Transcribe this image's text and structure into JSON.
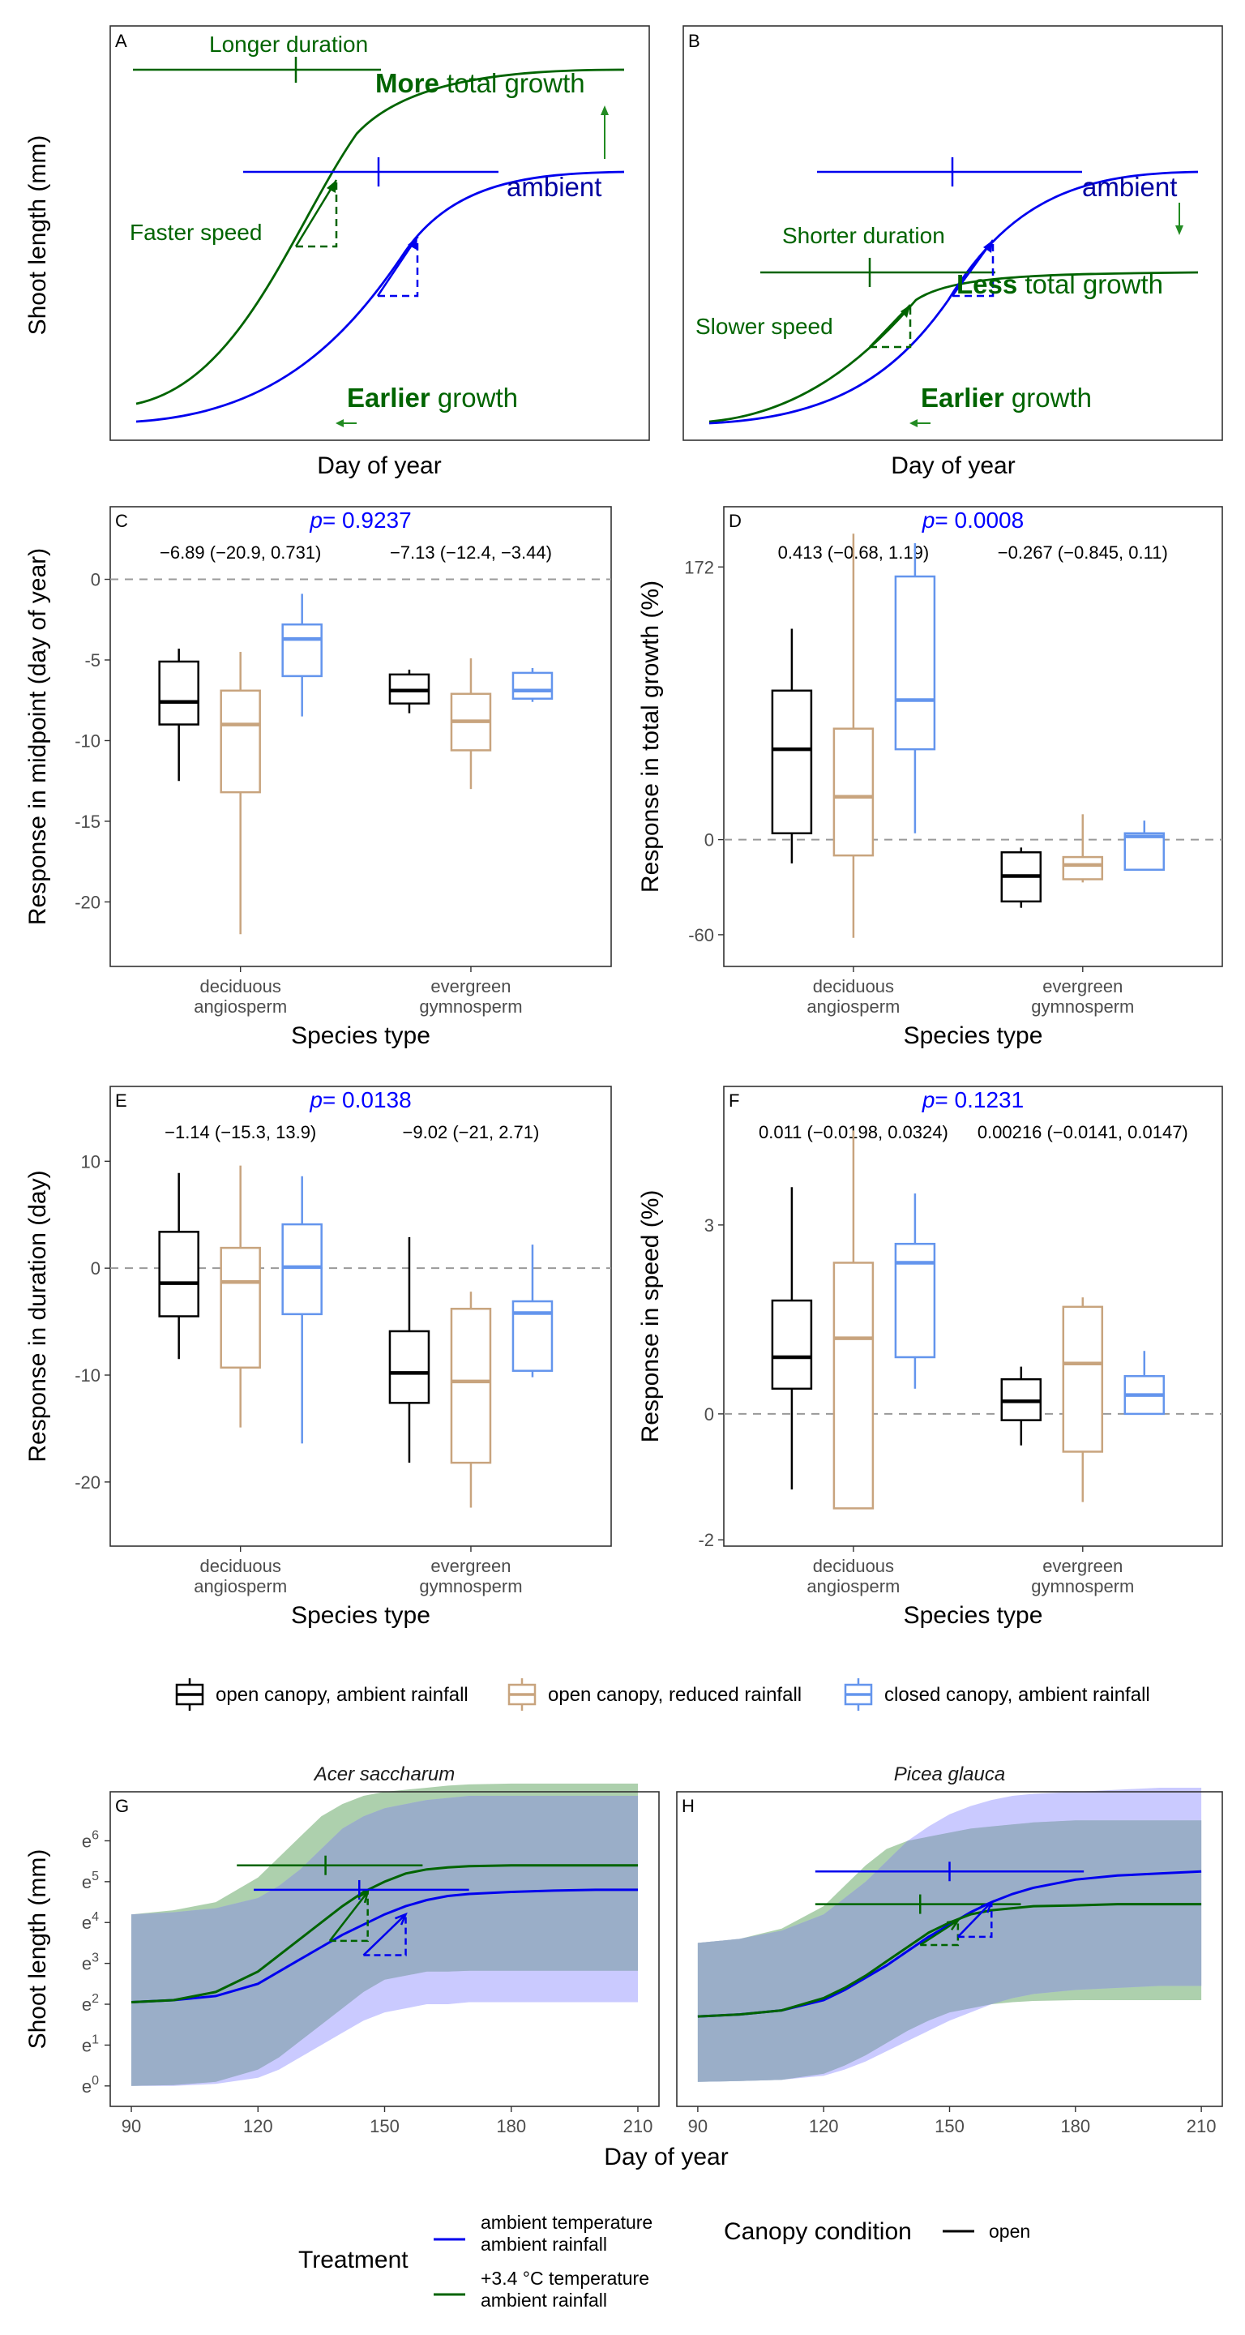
{
  "colors": {
    "green": "#006400",
    "blue": "#0000ee",
    "open_ambient": "#000000",
    "open_reduced": "#c8a47e",
    "closed_ambient": "#6495ed",
    "pval": "#0000ff",
    "band_green": "#9fc89f",
    "band_blue": "#b8b8ff",
    "band_overlap": "#9aaec8"
  },
  "panel_a": {
    "letter": "A",
    "ylabel": "Shoot length (mm)",
    "xlabel": "Day of year",
    "labels": {
      "longer_duration": "Longer duration",
      "more": "More",
      "total_growth": " total growth",
      "ambient": "ambient",
      "faster_speed": "Faster speed",
      "earlier": "Earlier",
      "growth": " growth"
    }
  },
  "panel_b": {
    "letter": "B",
    "xlabel": "Day of year",
    "labels": {
      "ambient": "ambient",
      "shorter_duration": "Shorter duration",
      "less": "Less",
      "total_growth": " total growth",
      "slower_speed": "Slower speed",
      "earlier": "Earlier",
      "growth": " growth"
    }
  },
  "legend": {
    "items": [
      {
        "label": "open canopy, ambient rainfall",
        "color": "#000000"
      },
      {
        "label": "open canopy, reduced rainfall",
        "color": "#c8a47e"
      },
      {
        "label": "closed canopy, ambient rainfall",
        "color": "#6495ed"
      }
    ]
  },
  "chart_data": [
    {
      "type": "box",
      "panel": "C",
      "ylabel": "Response in midpoint (day of year)",
      "xlabel": "Species type",
      "ylim": [
        -24,
        4.5
      ],
      "yticks": [
        0,
        -5,
        -10,
        -15,
        -20
      ],
      "ytick_labels": [
        "0",
        "-5",
        "-10",
        "-15",
        "-20"
      ],
      "zero_line": 0,
      "p_label": "p",
      "p_value": "= 0.9237",
      "categories": [
        "deciduous\nangiosperm",
        "evergreen\ngymnosperm"
      ],
      "category_lines": [
        [
          "deciduous",
          "angiosperm"
        ],
        [
          "evergreen",
          "gymnosperm"
        ]
      ],
      "annotations": [
        "−6.89 (−20.9, 0.731)",
        "−7.13 (−12.4, −3.44)"
      ],
      "series": [
        {
          "name": "open canopy, ambient rainfall",
          "boxes": [
            [
              -12.5,
              -9.0,
              -7.6,
              -5.1,
              -4.3
            ],
            [
              -8.3,
              -7.7,
              -6.9,
              -5.9,
              -5.6
            ]
          ]
        },
        {
          "name": "open canopy, reduced rainfall",
          "boxes": [
            [
              -22.0,
              -13.2,
              -9.0,
              -6.9,
              -4.5
            ],
            [
              -13.0,
              -10.6,
              -8.8,
              -7.1,
              -4.9
            ]
          ]
        },
        {
          "name": "closed canopy, ambient rainfall",
          "boxes": [
            [
              -8.5,
              -6.0,
              -3.7,
              -2.8,
              -0.9
            ],
            [
              -7.6,
              -7.4,
              -6.9,
              -5.8,
              -5.5
            ]
          ]
        }
      ]
    },
    {
      "type": "box",
      "panel": "D",
      "ylabel": "Response in total growth (%)",
      "xlabel": "Species type",
      "ylim": [
        -80,
        210
      ],
      "yticks": [
        172,
        0,
        -60
      ],
      "ytick_labels": [
        "172",
        "0",
        "-60"
      ],
      "zero_line": 0,
      "p_label": "p",
      "p_value": "= 0.0008",
      "categories": [
        "deciduous\nangiosperm",
        "evergreen\ngymnosperm"
      ],
      "category_lines": [
        [
          "deciduous",
          "angiosperm"
        ],
        [
          "evergreen",
          "gymnosperm"
        ]
      ],
      "annotations": [
        "0.413 (−0.68, 1.19)",
        "−0.267 (−0.845, 0.11)"
      ],
      "series": [
        {
          "name": "open canopy, ambient rainfall",
          "boxes": [
            [
              -15,
              4,
              57,
              94,
              133
            ],
            [
              -43,
              -39,
              -23,
              -8,
              -5
            ]
          ]
        },
        {
          "name": "open canopy, reduced rainfall",
          "boxes": [
            [
              -62,
              -10,
              27,
              70,
              193
            ],
            [
              -27,
              -25,
              -16,
              -11,
              16
            ]
          ]
        },
        {
          "name": "closed canopy, ambient rainfall",
          "boxes": [
            [
              4,
              57,
              88,
              166,
              187
            ],
            [
              -17,
              -19,
              2,
              4,
              12
            ]
          ]
        }
      ]
    },
    {
      "type": "box",
      "panel": "E",
      "ylabel": "Response in duration (day)",
      "xlabel": "Species type",
      "ylim": [
        -26,
        17
      ],
      "yticks": [
        10,
        0,
        -10,
        -20
      ],
      "ytick_labels": [
        "10",
        "0",
        "-10",
        "-20"
      ],
      "zero_line": 0,
      "p_label": "p",
      "p_value": "= 0.0138",
      "categories": [
        "deciduous\nangiosperm",
        "evergreen\ngymnosperm"
      ],
      "category_lines": [
        [
          "deciduous",
          "angiosperm"
        ],
        [
          "evergreen",
          "gymnosperm"
        ]
      ],
      "annotations": [
        "−1.14 (−15.3, 13.9)",
        "−9.02 (−21, 2.71)"
      ],
      "series": [
        {
          "name": "open canopy, ambient rainfall",
          "boxes": [
            [
              -8.5,
              -4.5,
              -1.4,
              3.4,
              8.9
            ],
            [
              -18.2,
              -12.6,
              -9.8,
              -5.9,
              2.9
            ]
          ]
        },
        {
          "name": "open canopy, reduced rainfall",
          "boxes": [
            [
              -14.9,
              -9.3,
              -1.3,
              1.9,
              9.6
            ],
            [
              -22.4,
              -18.2,
              -10.6,
              -3.8,
              -2.2
            ]
          ]
        },
        {
          "name": "closed canopy, ambient rainfall",
          "boxes": [
            [
              -16.4,
              -4.3,
              0.1,
              4.1,
              8.6
            ],
            [
              -10.2,
              -9.6,
              -4.2,
              -3.1,
              2.2
            ]
          ]
        }
      ]
    },
    {
      "type": "box",
      "panel": "F",
      "ylabel": "Response in speed (%)",
      "xlabel": "Species type",
      "ylim": [
        -2.1,
        5.2
      ],
      "yticks": [
        3,
        0,
        -2
      ],
      "ytick_labels": [
        "3",
        "0",
        "-2"
      ],
      "zero_line": 0,
      "p_label": "p",
      "p_value": "= 0.1231",
      "categories": [
        "deciduous\nangiosperm",
        "evergreen\ngymnosperm"
      ],
      "category_lines": [
        [
          "deciduous",
          "angiosperm"
        ],
        [
          "evergreen",
          "gymnosperm"
        ]
      ],
      "annotations": [
        "0.011 (−0.0198, 0.0324)",
        "0.00216 (−0.0141, 0.0147)"
      ],
      "series": [
        {
          "name": "open canopy, ambient rainfall",
          "boxes": [
            [
              -1.2,
              0.4,
              0.9,
              1.8,
              3.6
            ],
            [
              -0.5,
              -0.1,
              0.2,
              0.55,
              0.75
            ]
          ]
        },
        {
          "name": "open canopy, reduced rainfall",
          "boxes": [
            [
              -1.5,
              -1.5,
              1.2,
              2.4,
              4.5
            ],
            [
              -1.4,
              -0.6,
              0.8,
              1.7,
              1.85
            ]
          ]
        },
        {
          "name": "closed canopy, ambient rainfall",
          "boxes": [
            [
              0.4,
              0.9,
              2.4,
              2.7,
              3.5
            ],
            [
              0.0,
              0.0,
              0.3,
              0.6,
              1.0
            ]
          ]
        }
      ]
    },
    {
      "type": "line",
      "panel": "G",
      "title": "Acer saccharum",
      "ylabel": "Shoot length (mm)",
      "xlabel": "Day of year",
      "xlim": [
        85,
        215
      ],
      "ylim": [
        -0.5,
        7.2
      ],
      "xticks": [
        90,
        120,
        150,
        180,
        210
      ],
      "ytick_labels": [
        "e0",
        "e1",
        "e2",
        "e3",
        "e4",
        "e5",
        "e6"
      ],
      "x": [
        90,
        100,
        110,
        120,
        125,
        130,
        135,
        140,
        145,
        150,
        155,
        160,
        165,
        170,
        180,
        190,
        200,
        210
      ],
      "series": [
        {
          "name": "ambient temperature ambient rainfall",
          "values": [
            2.05,
            2.1,
            2.2,
            2.5,
            2.8,
            3.1,
            3.4,
            3.7,
            3.95,
            4.2,
            4.4,
            4.55,
            4.65,
            4.7,
            4.75,
            4.78,
            4.8,
            4.8
          ],
          "band_lower": [
            0,
            0,
            0.05,
            0.2,
            0.4,
            0.7,
            1.0,
            1.3,
            1.6,
            1.8,
            1.9,
            2.0,
            2.0,
            2.05,
            2.05,
            2.05,
            2.05,
            2.05
          ],
          "band_upper": [
            4.2,
            4.25,
            4.35,
            4.6,
            4.9,
            5.3,
            5.8,
            6.3,
            6.6,
            6.8,
            6.9,
            7.0,
            7.05,
            7.1,
            7.1,
            7.1,
            7.1,
            7.1
          ]
        },
        {
          "name": "+3.4 °C temperature ambient rainfall",
          "values": [
            2.05,
            2.1,
            2.3,
            2.8,
            3.2,
            3.6,
            4.0,
            4.4,
            4.75,
            5.0,
            5.2,
            5.3,
            5.35,
            5.38,
            5.4,
            5.4,
            5.4,
            5.4
          ],
          "band_lower": [
            0,
            0.02,
            0.1,
            0.4,
            0.7,
            1.1,
            1.5,
            1.9,
            2.3,
            2.6,
            2.7,
            2.8,
            2.8,
            2.82,
            2.82,
            2.82,
            2.82,
            2.82
          ],
          "band_upper": [
            4.2,
            4.3,
            4.5,
            5.1,
            5.6,
            6.1,
            6.6,
            6.9,
            7.1,
            7.2,
            7.25,
            7.3,
            7.35,
            7.38,
            7.4,
            7.4,
            7.4,
            7.4
          ]
        }
      ],
      "duration_bars": [
        {
          "series": "+3.4 °C temperature ambient rainfall",
          "start": 115,
          "end": 159,
          "mid": 136,
          "y": 5.4
        },
        {
          "series": "ambient temperature ambient rainfall",
          "start": 119,
          "end": 170,
          "mid": 144,
          "y": 4.8
        }
      ],
      "speed_triangles": [
        {
          "series": "+3.4 °C temperature ambient rainfall",
          "x0": 137,
          "y0": 3.55,
          "x1": 146,
          "y1": 4.75
        },
        {
          "series": "ambient temperature ambient rainfall",
          "x0": 145,
          "y0": 3.2,
          "x1": 155,
          "y1": 4.2
        }
      ]
    },
    {
      "type": "line",
      "panel": "H",
      "title": "Picea glauca",
      "xlabel": "Day of year",
      "xlim": [
        85,
        215
      ],
      "ylim": [
        -0.5,
        7.2
      ],
      "xticks": [
        90,
        120,
        150,
        180,
        210
      ],
      "x": [
        90,
        100,
        110,
        120,
        125,
        130,
        135,
        140,
        145,
        150,
        155,
        160,
        165,
        170,
        180,
        190,
        200,
        210
      ],
      "series": [
        {
          "name": "ambient temperature ambient rainfall",
          "values": [
            1.7,
            1.75,
            1.85,
            2.1,
            2.35,
            2.65,
            2.95,
            3.3,
            3.65,
            3.95,
            4.25,
            4.5,
            4.7,
            4.85,
            5.05,
            5.15,
            5.2,
            5.25
          ],
          "band_lower": [
            0.1,
            0.12,
            0.15,
            0.25,
            0.4,
            0.6,
            0.85,
            1.1,
            1.35,
            1.6,
            1.8,
            2.0,
            2.15,
            2.25,
            2.35,
            2.4,
            2.45,
            2.45
          ],
          "band_upper": [
            3.5,
            3.6,
            3.8,
            4.2,
            4.6,
            5.0,
            5.5,
            6.0,
            6.35,
            6.65,
            6.85,
            7.0,
            7.1,
            7.15,
            7.2,
            7.25,
            7.3,
            7.3
          ]
        },
        {
          "name": "+3.4 °C temperature ambient rainfall",
          "values": [
            1.7,
            1.75,
            1.85,
            2.15,
            2.4,
            2.7,
            3.05,
            3.4,
            3.75,
            4.0,
            4.2,
            4.3,
            4.35,
            4.4,
            4.42,
            4.45,
            4.45,
            4.45
          ],
          "band_lower": [
            0.1,
            0.12,
            0.15,
            0.3,
            0.5,
            0.75,
            1.05,
            1.35,
            1.6,
            1.8,
            1.9,
            2.0,
            2.05,
            2.08,
            2.1,
            2.1,
            2.1,
            2.1
          ],
          "band_upper": [
            3.5,
            3.6,
            3.85,
            4.4,
            4.9,
            5.4,
            5.8,
            6.0,
            6.1,
            6.2,
            6.3,
            6.35,
            6.4,
            6.45,
            6.5,
            6.5,
            6.5,
            6.5
          ]
        }
      ],
      "duration_bars": [
        {
          "series": "ambient temperature ambient rainfall",
          "start": 118,
          "end": 182,
          "mid": 150,
          "y": 5.25
        },
        {
          "series": "+3.4 °C temperature ambient rainfall",
          "start": 118,
          "end": 167,
          "mid": 143,
          "y": 4.45
        }
      ],
      "speed_triangles": [
        {
          "series": "+3.4 °C temperature ambient rainfall",
          "x0": 143,
          "y0": 3.45,
          "x1": 152,
          "y1": 4.05
        },
        {
          "series": "ambient temperature ambient rainfall",
          "x0": 152,
          "y0": 3.65,
          "x1": 160,
          "y1": 4.5
        }
      ]
    }
  ],
  "bottom_legend": {
    "treatment_title": "Treatment",
    "canopy_title": "Canopy condition",
    "treatment_items": [
      {
        "line1": "ambient temperature",
        "line2": "ambient rainfall",
        "color": "#0000ee"
      },
      {
        "line1": "+3.4 °C temperature",
        "line2": "ambient rainfall",
        "color": "#006400"
      }
    ],
    "canopy_item": "open"
  }
}
